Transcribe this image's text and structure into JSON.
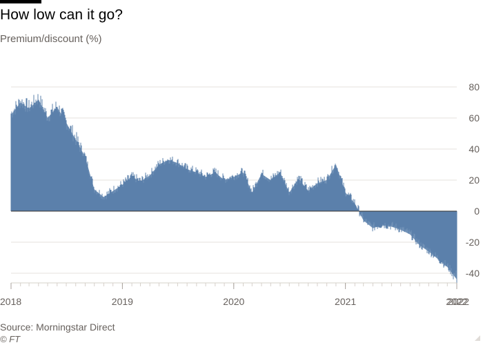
{
  "header": {
    "title": "How low can it go?",
    "subtitle": "Premium/discount (%)"
  },
  "footer": {
    "source": "Source: Morningstar Direct",
    "credit": "© FT"
  },
  "colors": {
    "bar": "#5b80ab",
    "grid": "#e6e2de",
    "zero_line": "#33302e",
    "text": "#66605c"
  },
  "chart_data": {
    "type": "bar",
    "title": "How low can it go?",
    "ylabel": "Premium/discount (%)",
    "xlabel": "",
    "x_range": [
      "2018-01-01",
      "2022-01-01"
    ],
    "ylim": [
      -45,
      90
    ],
    "y_ticks": [
      80,
      60,
      40,
      20,
      0,
      -20,
      -40
    ],
    "y_tick_labels": [
      "80",
      "60",
      "40",
      "20",
      "0",
      "-20",
      "-40"
    ],
    "x_ticks": [
      "2018-01-01",
      "2019-01-01",
      "2020-01-01",
      "2021-01-01",
      "2022-01-01",
      "2022-01-01"
    ],
    "x_tick_labels": [
      "2018",
      "2019",
      "2020",
      "2021",
      "2022",
      "2022"
    ],
    "grid": true,
    "series": [
      {
        "values": [
          {
            "x": "2018-01-01",
            "y": 62
          },
          {
            "x": "2018-02-01",
            "y": 70
          },
          {
            "x": "2018-03-01",
            "y": 66
          },
          {
            "x": "2018-04-01",
            "y": 72
          },
          {
            "x": "2018-05-01",
            "y": 60
          },
          {
            "x": "2018-06-01",
            "y": 67
          },
          {
            "x": "2018-07-01",
            "y": 57
          },
          {
            "x": "2018-08-01",
            "y": 46
          },
          {
            "x": "2018-09-01",
            "y": 35
          },
          {
            "x": "2018-10-01",
            "y": 14
          },
          {
            "x": "2018-11-01",
            "y": 9
          },
          {
            "x": "2018-12-01",
            "y": 13
          },
          {
            "x": "2019-01-01",
            "y": 17
          },
          {
            "x": "2019-02-01",
            "y": 22
          },
          {
            "x": "2019-03-01",
            "y": 19
          },
          {
            "x": "2019-04-01",
            "y": 23
          },
          {
            "x": "2019-05-01",
            "y": 30
          },
          {
            "x": "2019-06-01",
            "y": 33
          },
          {
            "x": "2019-07-01",
            "y": 31
          },
          {
            "x": "2019-08-01",
            "y": 27
          },
          {
            "x": "2019-09-01",
            "y": 25
          },
          {
            "x": "2019-10-01",
            "y": 22
          },
          {
            "x": "2019-11-01",
            "y": 25
          },
          {
            "x": "2019-12-01",
            "y": 20
          },
          {
            "x": "2020-01-01",
            "y": 22
          },
          {
            "x": "2020-02-01",
            "y": 25
          },
          {
            "x": "2020-03-01",
            "y": 12
          },
          {
            "x": "2020-04-01",
            "y": 24
          },
          {
            "x": "2020-05-01",
            "y": 20
          },
          {
            "x": "2020-06-01",
            "y": 25
          },
          {
            "x": "2020-07-01",
            "y": 12
          },
          {
            "x": "2020-08-01",
            "y": 21
          },
          {
            "x": "2020-09-01",
            "y": 13
          },
          {
            "x": "2020-10-01",
            "y": 18
          },
          {
            "x": "2020-11-01",
            "y": 20
          },
          {
            "x": "2020-12-01",
            "y": 30
          },
          {
            "x": "2021-01-01",
            "y": 12
          },
          {
            "x": "2021-02-01",
            "y": 5
          },
          {
            "x": "2021-03-01",
            "y": -6
          },
          {
            "x": "2021-04-01",
            "y": -11
          },
          {
            "x": "2021-05-01",
            "y": -9
          },
          {
            "x": "2021-06-01",
            "y": -10
          },
          {
            "x": "2021-07-01",
            "y": -12
          },
          {
            "x": "2021-08-01",
            "y": -15
          },
          {
            "x": "2021-09-01",
            "y": -22
          },
          {
            "x": "2021-10-01",
            "y": -26
          },
          {
            "x": "2021-11-01",
            "y": -31
          },
          {
            "x": "2021-12-01",
            "y": -36
          },
          {
            "x": "2022-01-01",
            "y": -44
          }
        ]
      }
    ]
  }
}
